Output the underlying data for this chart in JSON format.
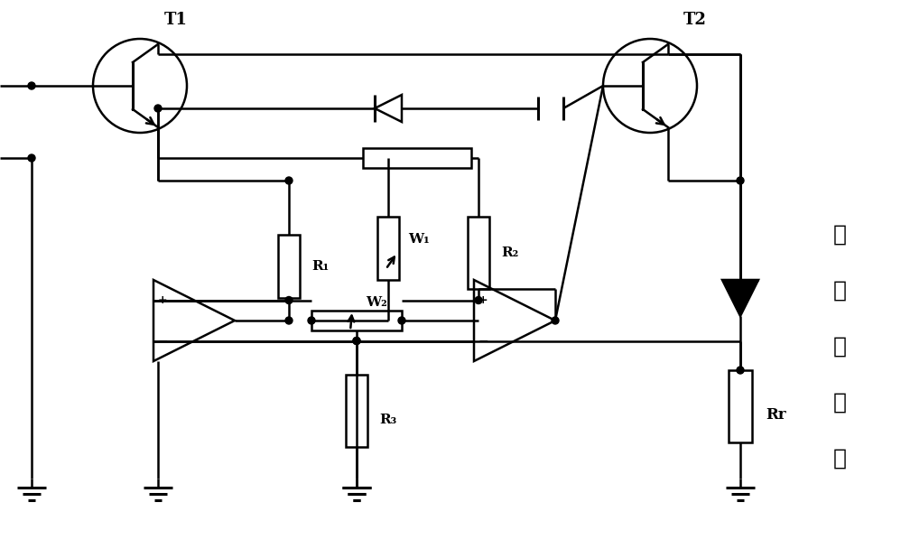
{
  "background_color": "#ffffff",
  "label_T1": "T1",
  "label_T2": "T2",
  "label_R1": "R₁",
  "label_R2": "R₂",
  "label_R3": "R₃",
  "label_W1": "W₁",
  "label_W2": "W₂",
  "label_Rr": "Rr",
  "label_laser": [
    "激",
    "光",
    "器",
    "组",
    "件"
  ],
  "figsize": [
    9.98,
    6.18
  ],
  "dpi": 100
}
